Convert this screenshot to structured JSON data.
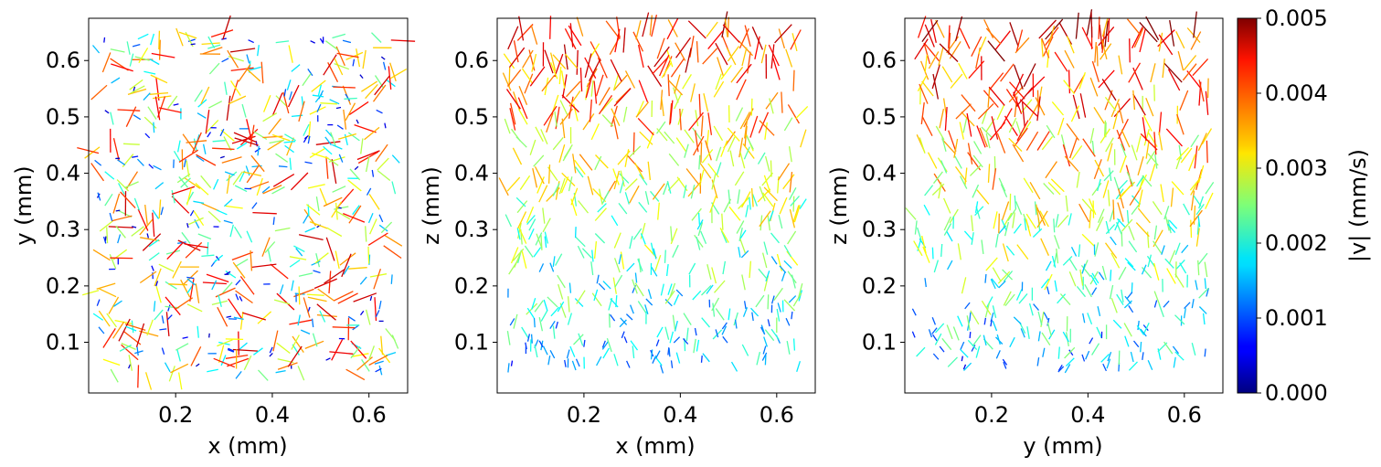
{
  "chart_data": [
    {
      "type": "scatter",
      "subtype": "quiver",
      "title": "",
      "xlabel": "x (mm)",
      "ylabel": "y (mm)",
      "xlim": [
        0.02,
        0.68
      ],
      "ylim": [
        0.01,
        0.675
      ],
      "xticks": [
        "0.2",
        "0.4",
        "0.6"
      ],
      "yticks": [
        "0.1",
        "0.2",
        "0.3",
        "0.4",
        "0.5",
        "0.6"
      ],
      "grid": false,
      "field": "velocity vectors colored by |v|; uniform speed range across domain, no clear spatial trend",
      "speed_profile": {
        "bottom": 0.0025,
        "top": 0.0025,
        "spread": 0.0022,
        "direction": "random"
      }
    },
    {
      "type": "scatter",
      "subtype": "quiver",
      "title": "",
      "xlabel": "x (mm)",
      "ylabel": "z (mm)",
      "xlim": [
        0.02,
        0.68
      ],
      "ylim": [
        0.01,
        0.675
      ],
      "xticks": [
        "0.2",
        "0.4",
        "0.6"
      ],
      "yticks": [
        "0.1",
        "0.2",
        "0.3",
        "0.4",
        "0.5",
        "0.6"
      ],
      "grid": false,
      "field": "velocity vectors colored by |v|; speed increases with z (~0.0015 mm/s at bottom to ~0.004 mm/s at top), mostly upward",
      "speed_profile": {
        "bottom": 0.0014,
        "top": 0.0042,
        "spread": 0.0009,
        "direction": "up"
      }
    },
    {
      "type": "scatter",
      "subtype": "quiver",
      "title": "",
      "xlabel": "y (mm)",
      "ylabel": "z (mm)",
      "xlim": [
        0.02,
        0.68
      ],
      "ylim": [
        0.01,
        0.675
      ],
      "xticks": [
        "0.2",
        "0.4",
        "0.6"
      ],
      "yticks": [
        "0.1",
        "0.2",
        "0.3",
        "0.4",
        "0.5",
        "0.6"
      ],
      "grid": false,
      "field": "velocity vectors colored by |v|; speed increases with z (~0.0015 mm/s at bottom to ~0.0045 mm/s at top), mostly upward",
      "speed_profile": {
        "bottom": 0.0014,
        "top": 0.0044,
        "spread": 0.001,
        "direction": "up"
      }
    }
  ],
  "colorbar": {
    "label": "|v| (mm/s)",
    "colormap": "jet",
    "range": [
      0.0,
      0.005
    ],
    "ticks": [
      "0.000",
      "0.001",
      "0.002",
      "0.003",
      "0.004",
      "0.005"
    ]
  }
}
